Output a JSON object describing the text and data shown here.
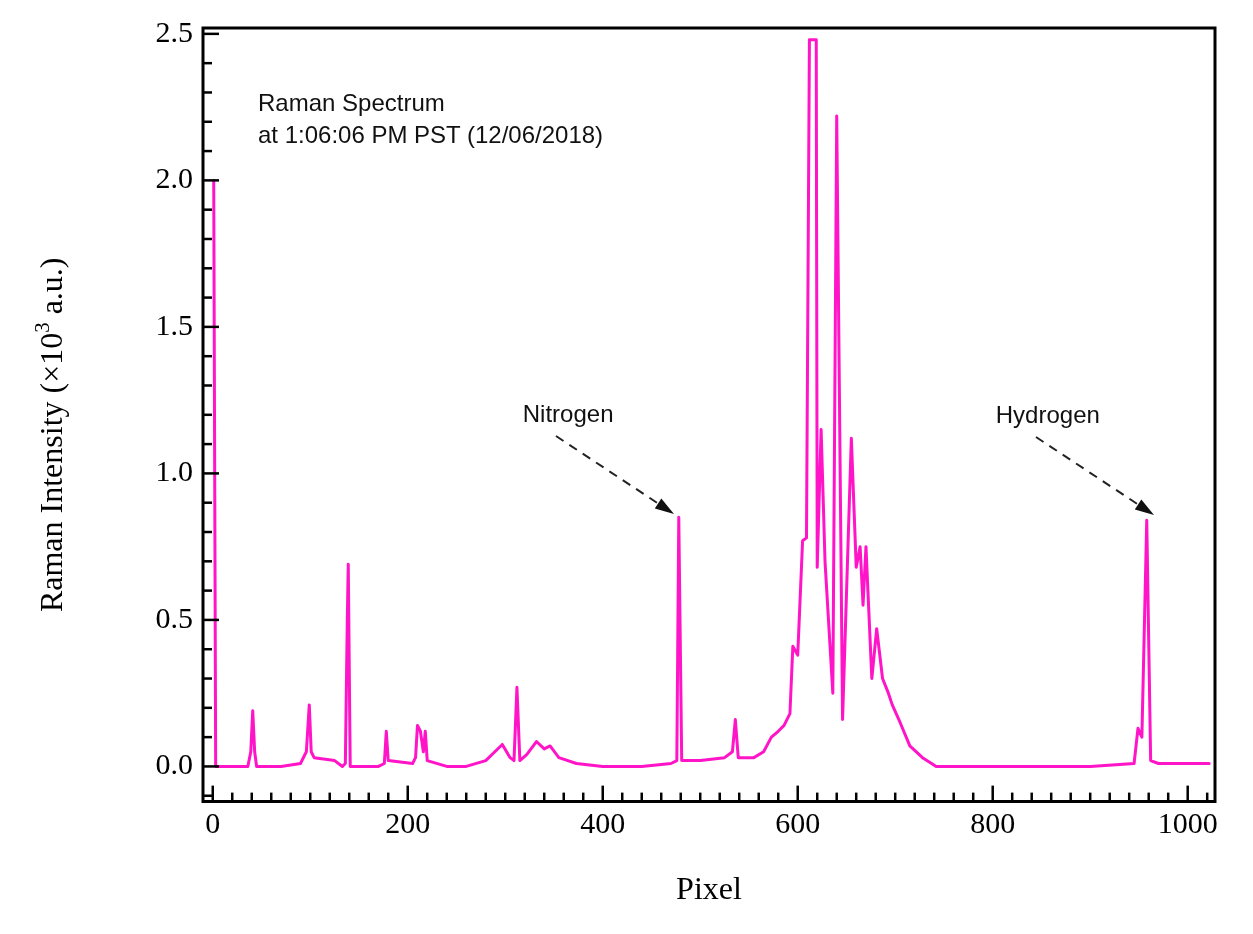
{
  "chart_data": {
    "type": "line",
    "title": "Raman Spectrum",
    "subtitle": "at 1:06:06 PM PST (12/06/2018)",
    "xlabel": "Pixel",
    "ylabel": "Raman Intensity (×10$^{3}$ a.u.)",
    "xlim": [
      -10,
      1028
    ],
    "ylim": [
      -0.12,
      2.52
    ],
    "xticks": [
      0,
      {
        "value": 20,
        "label": null
      },
      {
        "value": 40,
        "label": null
      },
      {
        "value": 60,
        "label": null
      },
      {
        "value": 80,
        "label": null
      },
      {
        "value": 100,
        "label": null
      },
      {
        "value": 120,
        "label": null
      },
      {
        "value": 140,
        "label": null
      },
      {
        "value": 160,
        "label": null
      },
      {
        "value": 180,
        "label": null
      },
      200,
      {
        "value": 220,
        "label": null
      },
      {
        "value": 240,
        "label": null
      },
      {
        "value": 260,
        "label": null
      },
      {
        "value": 280,
        "label": null
      },
      {
        "value": 300,
        "label": null
      },
      {
        "value": 320,
        "label": null
      },
      {
        "value": 340,
        "label": null
      },
      {
        "value": 360,
        "label": null
      },
      {
        "value": 380,
        "label": null
      },
      400,
      {
        "value": 420,
        "label": null
      },
      {
        "value": 440,
        "label": null
      },
      {
        "value": 460,
        "label": null
      },
      {
        "value": 480,
        "label": null
      },
      {
        "value": 500,
        "label": null
      },
      {
        "value": 520,
        "label": null
      },
      {
        "value": 540,
        "label": null
      },
      {
        "value": 560,
        "label": null
      },
      {
        "value": 580,
        "label": null
      },
      600,
      {
        "value": 620,
        "label": null
      },
      {
        "value": 640,
        "label": null
      },
      {
        "value": 660,
        "label": null
      },
      {
        "value": 680,
        "label": null
      },
      {
        "value": 700,
        "label": null
      },
      {
        "value": 720,
        "label": null
      },
      {
        "value": 740,
        "label": null
      },
      {
        "value": 760,
        "label": null
      },
      {
        "value": 780,
        "label": null
      },
      800,
      {
        "value": 820,
        "label": null
      },
      {
        "value": 840,
        "label": null
      },
      {
        "value": 860,
        "label": null
      },
      {
        "value": 880,
        "label": null
      },
      {
        "value": 900,
        "label": null
      },
      {
        "value": 920,
        "label": null
      },
      {
        "value": 940,
        "label": null
      },
      {
        "value": 960,
        "label": null
      },
      {
        "value": 980,
        "label": null
      },
      1000,
      {
        "value": 1020,
        "label": null
      }
    ],
    "yticks": [
      {
        "value": -0.1,
        "label": null
      },
      {
        "value": 0,
        "label": "0.0"
      },
      {
        "value": 0.1,
        "label": null
      },
      {
        "value": 0.2,
        "label": null
      },
      {
        "value": 0.3,
        "label": null
      },
      {
        "value": 0.4,
        "label": null
      },
      {
        "value": 0.5,
        "label": "0.5"
      },
      {
        "value": 0.6,
        "label": null
      },
      {
        "value": 0.7,
        "label": null
      },
      {
        "value": 0.8,
        "label": null
      },
      {
        "value": 0.9,
        "label": null
      },
      {
        "value": 1,
        "label": "1.0"
      },
      {
        "value": 1.1,
        "label": null
      },
      {
        "value": 1.2,
        "label": null
      },
      {
        "value": 1.3,
        "label": null
      },
      {
        "value": 1.4,
        "label": null
      },
      {
        "value": 1.5,
        "label": "1.5"
      },
      {
        "value": 1.6,
        "label": null
      },
      {
        "value": 1.7,
        "label": null
      },
      {
        "value": 1.8,
        "label": null
      },
      {
        "value": 1.9,
        "label": null
      },
      {
        "value": 2,
        "label": "2.0"
      },
      {
        "value": 2.1,
        "label": null
      },
      {
        "value": 2.2,
        "label": null
      },
      {
        "value": 2.3,
        "label": null
      },
      {
        "value": 2.4,
        "label": null
      },
      {
        "value": 2.5,
        "label": "2.5"
      }
    ],
    "grid": false,
    "legend": false,
    "marker": "none",
    "line_style": "solid",
    "annotations": [
      "Nitrogen",
      "Hydrogen"
    ],
    "series": [
      {
        "color": "#ff14c8",
        "x": [
          1,
          3,
          20,
          36,
          39,
          41,
          43,
          45,
          70,
          90,
          96,
          99,
          101,
          104,
          125,
          133,
          136,
          138,
          139,
          141,
          170,
          176,
          178,
          180,
          205,
          208,
          210,
          213,
          216,
          218,
          220,
          240,
          260,
          280,
          297,
          305,
          309,
          312,
          315,
          322,
          332,
          340,
          346,
          355,
          373,
          400,
          440,
          470,
          476,
          478,
          481,
          500,
          525,
          533,
          536,
          539,
          555,
          565,
          573,
          580,
          586,
          592,
          595,
          600,
          605,
          609,
          612,
          619,
          620,
          624,
          628,
          636,
          640,
          646,
          655,
          660,
          664,
          667,
          670,
          676,
          681,
          687,
          693,
          697,
          705,
          715,
          728,
          742,
          800,
          900,
          945,
          949,
          953,
          958,
          962,
          970,
          1000,
          1022
        ],
        "values": [
          2.0,
          0.0,
          0.0,
          0.0,
          0.05,
          0.19,
          0.05,
          0.0,
          0.0,
          0.01,
          0.05,
          0.21,
          0.05,
          0.03,
          0.02,
          0.0,
          0.01,
          0.5,
          0.69,
          0.0,
          0.0,
          0.01,
          0.12,
          0.02,
          0.01,
          0.03,
          0.14,
          0.12,
          0.05,
          0.12,
          0.02,
          0.0,
          0.0,
          0.02,
          0.075,
          0.03,
          0.02,
          0.27,
          0.02,
          0.04,
          0.085,
          0.06,
          0.07,
          0.03,
          0.01,
          0.0,
          0.0,
          0.01,
          0.02,
          0.85,
          0.02,
          0.02,
          0.03,
          0.05,
          0.16,
          0.03,
          0.03,
          0.05,
          0.1,
          0.12,
          0.14,
          0.18,
          0.41,
          0.38,
          0.77,
          0.78,
          2.48,
          2.48,
          0.68,
          1.15,
          0.7,
          0.25,
          2.22,
          0.16,
          1.12,
          0.68,
          0.75,
          0.55,
          0.75,
          0.3,
          0.47,
          0.3,
          0.25,
          0.21,
          0.15,
          0.07,
          0.03,
          0.0,
          0.0,
          0.0,
          0.01,
          0.13,
          0.1,
          0.84,
          0.02,
          0.01,
          0.01,
          0.01
        ]
      }
    ]
  }
}
